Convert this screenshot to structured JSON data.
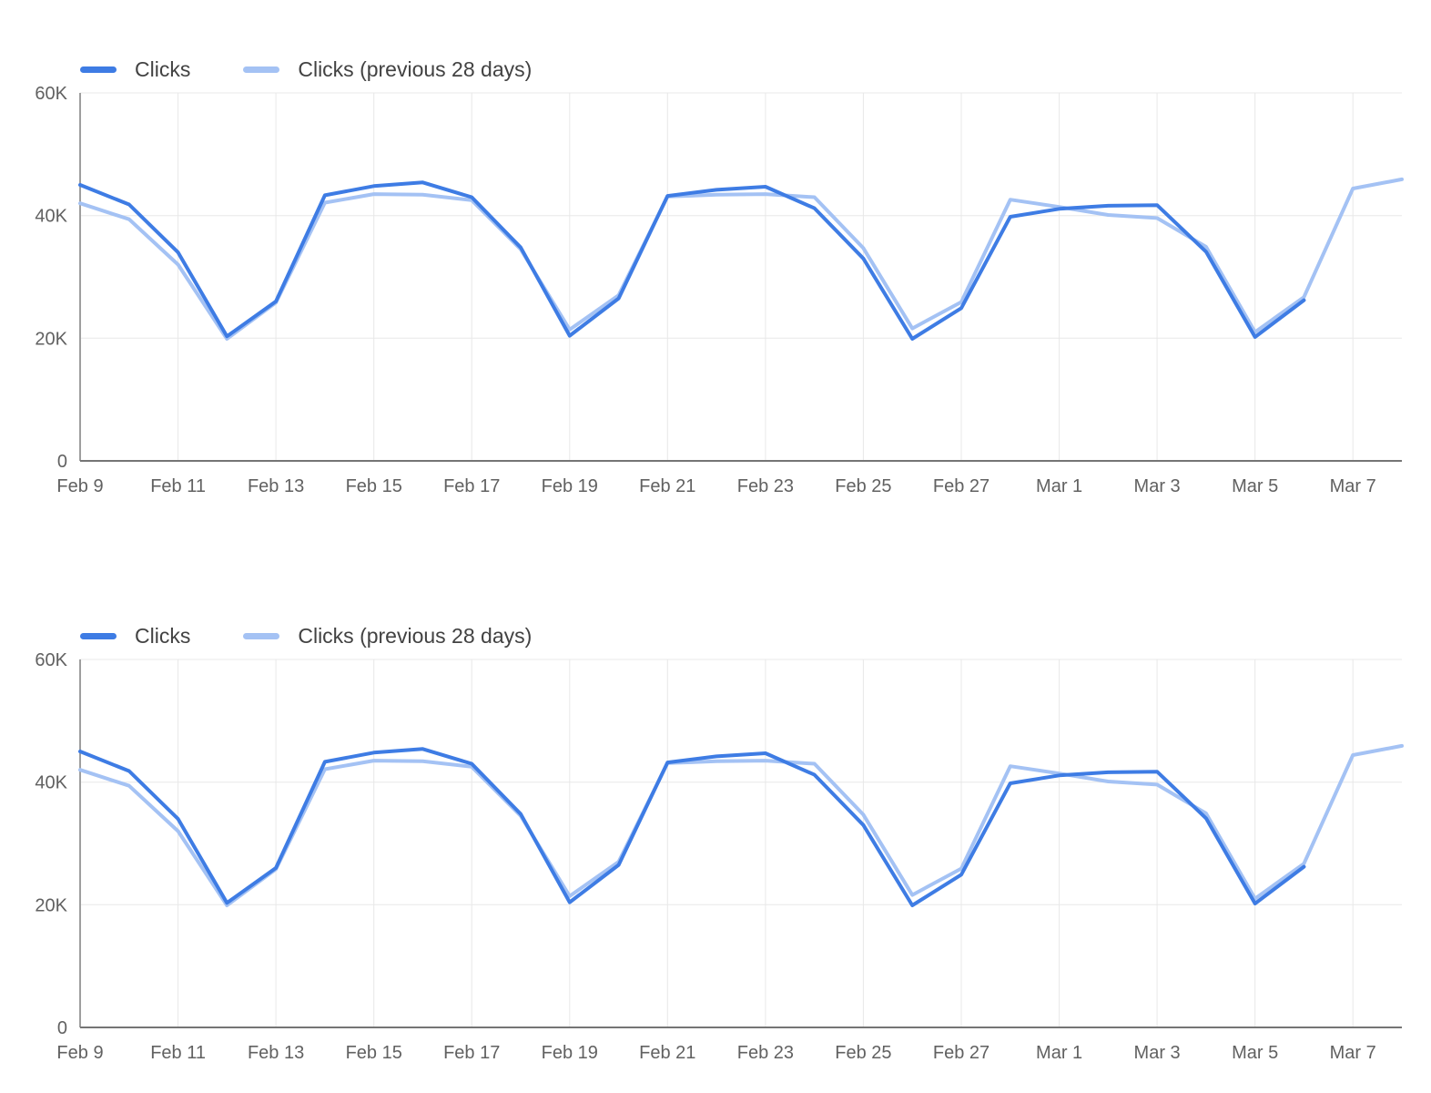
{
  "colors": {
    "background": "#ffffff",
    "grid": "#e8e8e8",
    "axis": "#757575",
    "tick_text": "#616161",
    "legend_text": "#424242",
    "series_current": "#3e7ce4",
    "series_previous": "#a4c2f4"
  },
  "chart_data": [
    {
      "type": "line",
      "title": "",
      "xlabel": "",
      "ylabel": "",
      "grid": true,
      "legend_position": "top-left",
      "ylim": [
        0,
        60000
      ],
      "yticks": [
        0,
        20000,
        40000,
        60000
      ],
      "ytick_labels": [
        "0",
        "20K",
        "40K",
        "60K"
      ],
      "x": [
        "Feb 9",
        "Feb 10",
        "Feb 11",
        "Feb 12",
        "Feb 13",
        "Feb 14",
        "Feb 15",
        "Feb 16",
        "Feb 17",
        "Feb 18",
        "Feb 19",
        "Feb 20",
        "Feb 21",
        "Feb 22",
        "Feb 23",
        "Feb 24",
        "Feb 25",
        "Feb 26",
        "Feb 27",
        "Feb 28",
        "Mar 1",
        "Mar 2",
        "Mar 3",
        "Mar 4",
        "Mar 5",
        "Mar 6",
        "Mar 7",
        "Mar 8"
      ],
      "x_tick_labels": [
        "Feb 9",
        "Feb 11",
        "Feb 13",
        "Feb 15",
        "Feb 17",
        "Feb 19",
        "Feb 21",
        "Feb 23",
        "Feb 25",
        "Feb 27",
        "Mar 1",
        "Mar 3",
        "Mar 5",
        "Mar 7"
      ],
      "series": [
        {
          "name": "Clicks",
          "color": "#3e7ce4",
          "values": [
            45000,
            41800,
            34000,
            20300,
            26000,
            43300,
            44800,
            45400,
            43000,
            34800,
            20400,
            26500,
            43200,
            44200,
            44700,
            41200,
            33000,
            19900,
            24900,
            39800,
            41100,
            41600,
            41700,
            34100,
            20200,
            26200,
            null,
            null
          ]
        },
        {
          "name": "Clicks (previous 28 days)",
          "color": "#a4c2f4",
          "values": [
            42000,
            39400,
            32000,
            19900,
            25800,
            42100,
            43500,
            43400,
            42500,
            34500,
            21400,
            27000,
            43100,
            43400,
            43500,
            43000,
            34700,
            21600,
            25900,
            42600,
            41400,
            40100,
            39600,
            34900,
            21000,
            26700,
            44400,
            45900
          ]
        }
      ]
    },
    {
      "type": "line",
      "title": "",
      "xlabel": "",
      "ylabel": "",
      "grid": true,
      "legend_position": "top-left",
      "ylim": [
        0,
        60000
      ],
      "yticks": [
        0,
        20000,
        40000,
        60000
      ],
      "ytick_labels": [
        "0",
        "20K",
        "40K",
        "60K"
      ],
      "x": [
        "Feb 9",
        "Feb 10",
        "Feb 11",
        "Feb 12",
        "Feb 13",
        "Feb 14",
        "Feb 15",
        "Feb 16",
        "Feb 17",
        "Feb 18",
        "Feb 19",
        "Feb 20",
        "Feb 21",
        "Feb 22",
        "Feb 23",
        "Feb 24",
        "Feb 25",
        "Feb 26",
        "Feb 27",
        "Feb 28",
        "Mar 1",
        "Mar 2",
        "Mar 3",
        "Mar 4",
        "Mar 5",
        "Mar 6",
        "Mar 7",
        "Mar 8"
      ],
      "x_tick_labels": [
        "Feb 9",
        "Feb 11",
        "Feb 13",
        "Feb 15",
        "Feb 17",
        "Feb 19",
        "Feb 21",
        "Feb 23",
        "Feb 25",
        "Feb 27",
        "Mar 1",
        "Mar 3",
        "Mar 5",
        "Mar 7"
      ],
      "series": [
        {
          "name": "Clicks",
          "color": "#3e7ce4",
          "values": [
            45000,
            41800,
            34000,
            20300,
            26000,
            43300,
            44800,
            45400,
            43000,
            34800,
            20400,
            26500,
            43200,
            44200,
            44700,
            41200,
            33000,
            19900,
            24900,
            39800,
            41100,
            41600,
            41700,
            34100,
            20200,
            26200,
            null,
            null
          ]
        },
        {
          "name": "Clicks (previous 28 days)",
          "color": "#a4c2f4",
          "values": [
            42000,
            39400,
            32000,
            19900,
            25800,
            42100,
            43500,
            43400,
            42500,
            34500,
            21400,
            27000,
            43100,
            43400,
            43500,
            43000,
            34700,
            21600,
            25900,
            42600,
            41400,
            40100,
            39600,
            34900,
            21000,
            26700,
            44400,
            45900
          ]
        }
      ]
    }
  ]
}
